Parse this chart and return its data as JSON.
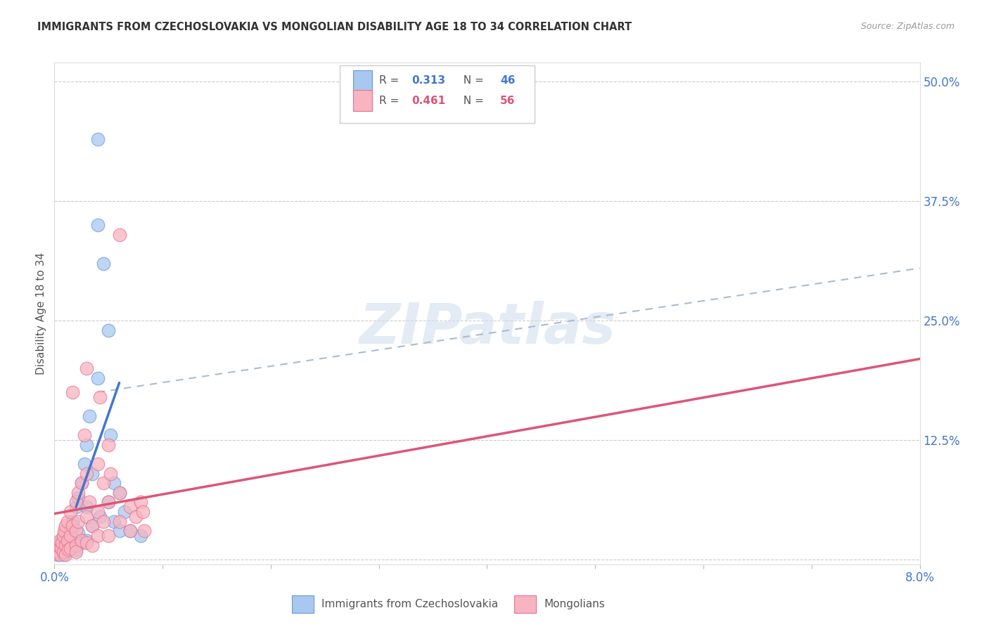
{
  "title": "IMMIGRANTS FROM CZECHOSLOVAKIA VS MONGOLIAN DISABILITY AGE 18 TO 34 CORRELATION CHART",
  "source": "Source: ZipAtlas.com",
  "ylabel": "Disability Age 18 to 34",
  "xmin": 0.0,
  "xmax": 0.08,
  "ymin": -0.005,
  "ymax": 0.52,
  "legend_blue_r": "0.313",
  "legend_blue_n": "46",
  "legend_pink_r": "0.461",
  "legend_pink_n": "56",
  "legend_label_blue": "Immigrants from Czechoslovakia",
  "legend_label_pink": "Mongolians",
  "blue_color": "#a8c8f0",
  "pink_color": "#f8b4c0",
  "blue_edge_color": "#6699dd",
  "pink_edge_color": "#e87090",
  "blue_line_color": "#4477cc",
  "pink_line_color": "#dd5577",
  "dash_line_color": "#aabbd0",
  "blue_scatter": [
    [
      0.0003,
      0.005
    ],
    [
      0.0004,
      0.01
    ],
    [
      0.0005,
      0.015
    ],
    [
      0.0005,
      0.008
    ],
    [
      0.0006,
      0.02
    ],
    [
      0.0007,
      0.012
    ],
    [
      0.0008,
      0.018
    ],
    [
      0.0008,
      0.005
    ],
    [
      0.0009,
      0.025
    ],
    [
      0.001,
      0.03
    ],
    [
      0.001,
      0.015
    ],
    [
      0.001,
      0.008
    ],
    [
      0.0012,
      0.022
    ],
    [
      0.0013,
      0.01
    ],
    [
      0.0015,
      0.035
    ],
    [
      0.0015,
      0.012
    ],
    [
      0.0017,
      0.04
    ],
    [
      0.002,
      0.055
    ],
    [
      0.002,
      0.02
    ],
    [
      0.002,
      0.01
    ],
    [
      0.0022,
      0.065
    ],
    [
      0.0022,
      0.028
    ],
    [
      0.0025,
      0.08
    ],
    [
      0.0025,
      0.018
    ],
    [
      0.0028,
      0.1
    ],
    [
      0.003,
      0.12
    ],
    [
      0.003,
      0.055
    ],
    [
      0.003,
      0.02
    ],
    [
      0.0032,
      0.15
    ],
    [
      0.0035,
      0.09
    ],
    [
      0.0035,
      0.035
    ],
    [
      0.004,
      0.19
    ],
    [
      0.004,
      0.44
    ],
    [
      0.004,
      0.35
    ],
    [
      0.0042,
      0.045
    ],
    [
      0.0045,
      0.31
    ],
    [
      0.005,
      0.24
    ],
    [
      0.005,
      0.06
    ],
    [
      0.0052,
      0.13
    ],
    [
      0.0055,
      0.04
    ],
    [
      0.006,
      0.07
    ],
    [
      0.006,
      0.03
    ],
    [
      0.0065,
      0.05
    ],
    [
      0.007,
      0.03
    ],
    [
      0.0055,
      0.08
    ],
    [
      0.008,
      0.025
    ]
  ],
  "pink_scatter": [
    [
      0.0002,
      0.01
    ],
    [
      0.0003,
      0.008
    ],
    [
      0.0004,
      0.015
    ],
    [
      0.0005,
      0.02
    ],
    [
      0.0005,
      0.005
    ],
    [
      0.0006,
      0.012
    ],
    [
      0.0007,
      0.018
    ],
    [
      0.0008,
      0.025
    ],
    [
      0.0008,
      0.008
    ],
    [
      0.0009,
      0.03
    ],
    [
      0.001,
      0.035
    ],
    [
      0.001,
      0.015
    ],
    [
      0.001,
      0.005
    ],
    [
      0.0012,
      0.04
    ],
    [
      0.0012,
      0.02
    ],
    [
      0.0013,
      0.01
    ],
    [
      0.0015,
      0.05
    ],
    [
      0.0015,
      0.025
    ],
    [
      0.0015,
      0.012
    ],
    [
      0.0017,
      0.035
    ],
    [
      0.002,
      0.06
    ],
    [
      0.002,
      0.03
    ],
    [
      0.002,
      0.015
    ],
    [
      0.002,
      0.008
    ],
    [
      0.0022,
      0.07
    ],
    [
      0.0022,
      0.04
    ],
    [
      0.0025,
      0.08
    ],
    [
      0.0025,
      0.02
    ],
    [
      0.003,
      0.09
    ],
    [
      0.003,
      0.045
    ],
    [
      0.003,
      0.018
    ],
    [
      0.0032,
      0.06
    ],
    [
      0.0035,
      0.035
    ],
    [
      0.0035,
      0.015
    ],
    [
      0.004,
      0.1
    ],
    [
      0.004,
      0.05
    ],
    [
      0.004,
      0.025
    ],
    [
      0.0042,
      0.17
    ],
    [
      0.0045,
      0.08
    ],
    [
      0.0045,
      0.04
    ],
    [
      0.005,
      0.12
    ],
    [
      0.005,
      0.06
    ],
    [
      0.005,
      0.025
    ],
    [
      0.0052,
      0.09
    ],
    [
      0.006,
      0.34
    ],
    [
      0.006,
      0.07
    ],
    [
      0.006,
      0.04
    ],
    [
      0.007,
      0.055
    ],
    [
      0.007,
      0.03
    ],
    [
      0.0075,
      0.045
    ],
    [
      0.008,
      0.06
    ],
    [
      0.0082,
      0.05
    ],
    [
      0.0083,
      0.03
    ],
    [
      0.003,
      0.2
    ],
    [
      0.0028,
      0.13
    ],
    [
      0.0017,
      0.175
    ]
  ],
  "blue_line_x": [
    0.002,
    0.006
  ],
  "blue_line_y": [
    0.055,
    0.185
  ],
  "pink_line_x": [
    0.0,
    0.08
  ],
  "pink_line_y": [
    0.048,
    0.21
  ],
  "dash_line_x": [
    0.004,
    0.08
  ],
  "dash_line_y": [
    0.175,
    0.305
  ],
  "watermark": "ZIPatlas",
  "background_color": "#ffffff",
  "grid_color": "#cccccc"
}
